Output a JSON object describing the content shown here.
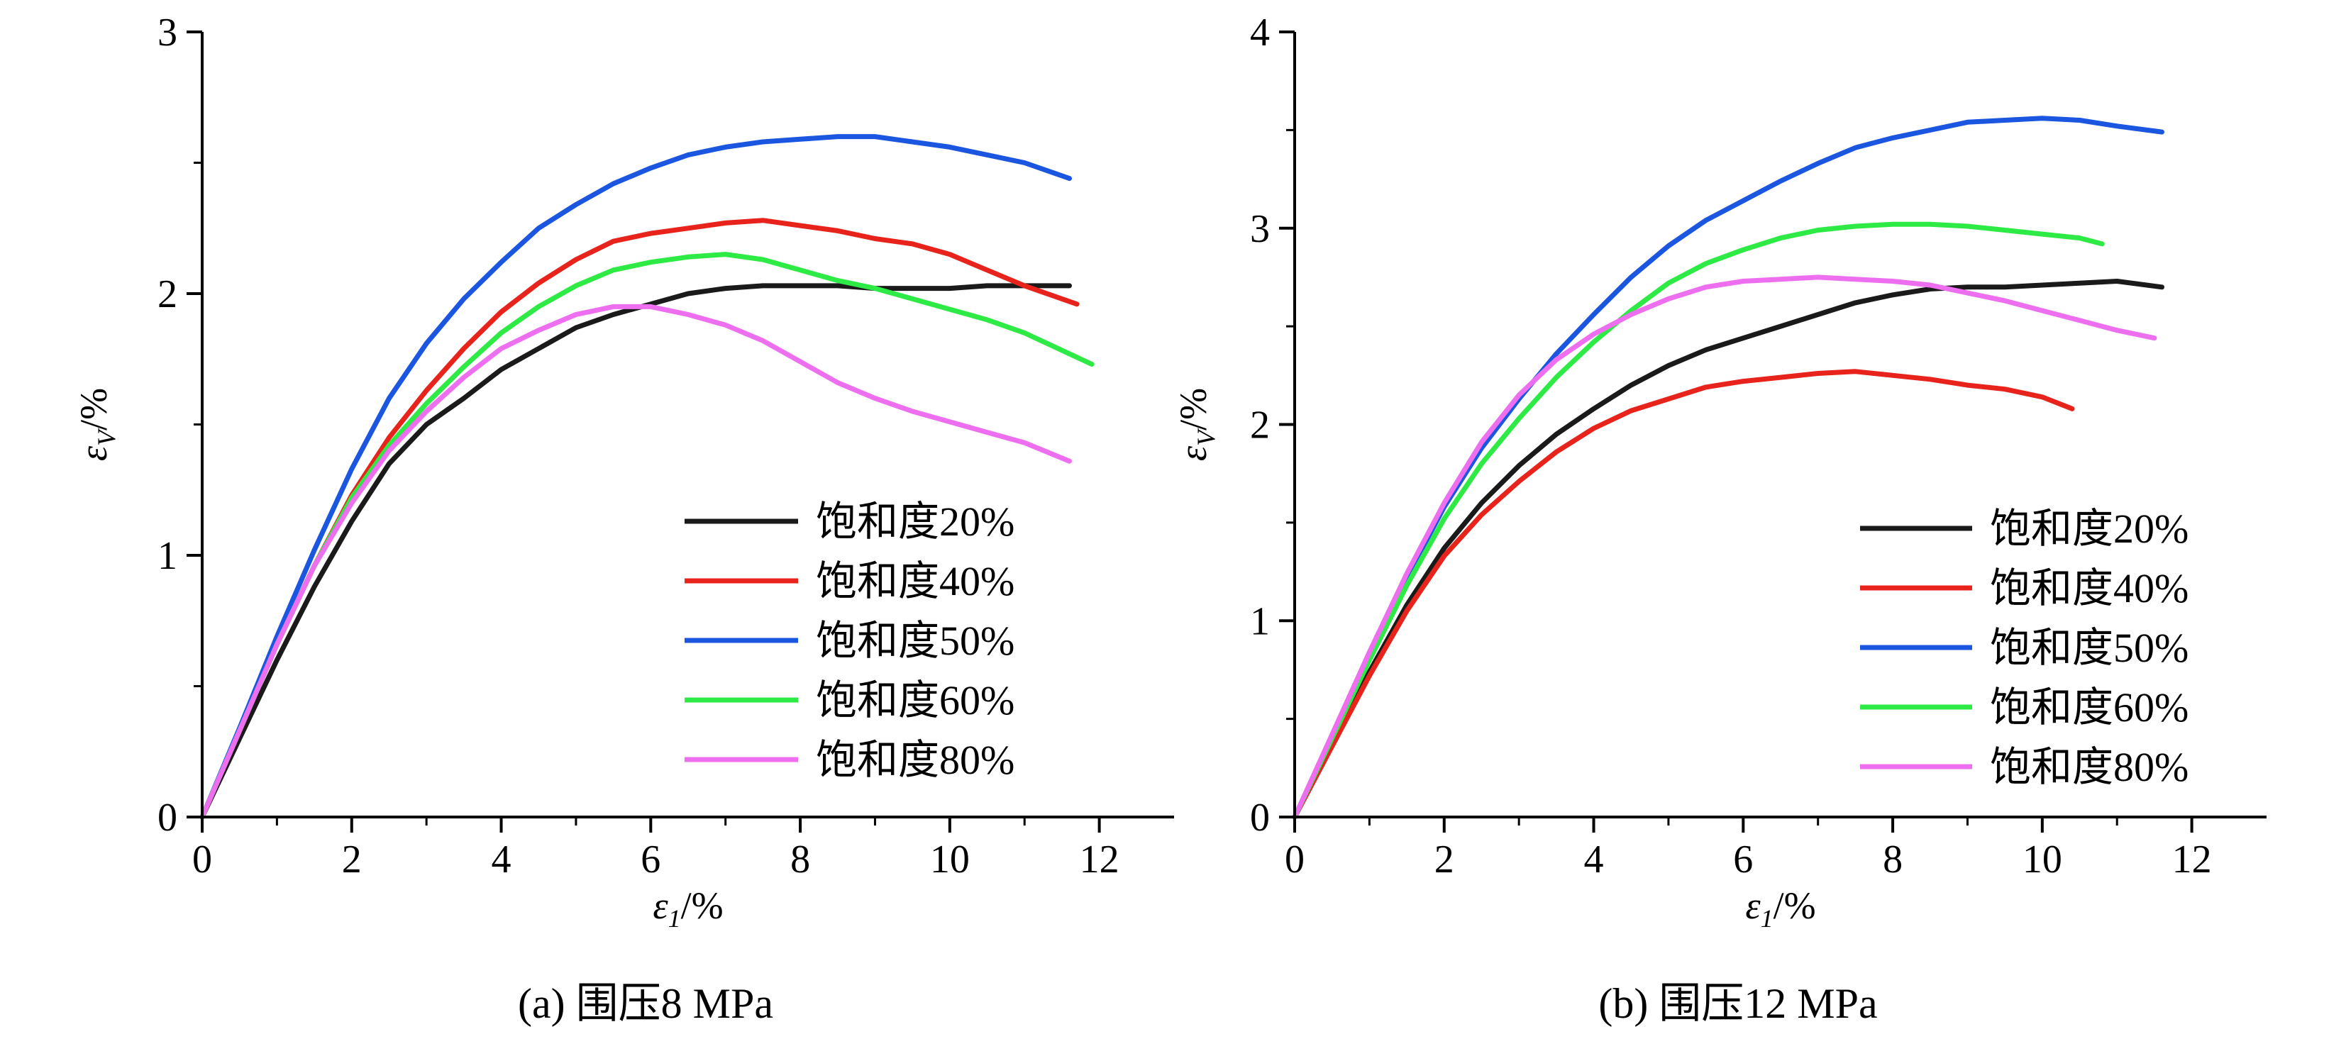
{
  "figure": {
    "background": "#ffffff",
    "colors": {
      "black": "#1a1a1a",
      "red": "#e8231c",
      "blue": "#1b56e0",
      "green": "#2eea45",
      "magenta": "#ee6ef0"
    }
  },
  "chart_data": [
    {
      "type": "line",
      "caption": "(a) 围压8 MPa",
      "xlabel": "ε1/%",
      "xlabel_main": "ε",
      "xlabel_sub": "1",
      "xlabel_unit": "/%",
      "ylabel": "εV/%",
      "ylabel_main": "ε",
      "ylabel_sub": "V",
      "ylabel_unit": "/%",
      "xlim": [
        0,
        13
      ],
      "ylim": [
        0,
        3
      ],
      "xticks": [
        0,
        2,
        4,
        6,
        8,
        10,
        12
      ],
      "yticks": [
        0,
        1,
        2,
        3
      ],
      "xtick_labels": [
        "0",
        "2",
        "4",
        "6",
        "8",
        "10",
        "12"
      ],
      "ytick_labels": [
        "0",
        "1",
        "2",
        "3"
      ],
      "grid": false,
      "legend_position": "bottom-right",
      "series": [
        {
          "name": "饱和度20%",
          "color": "#1a1a1a",
          "x": [
            0,
            0.5,
            1,
            1.5,
            2,
            2.5,
            3,
            3.5,
            4,
            4.5,
            5,
            5.5,
            6,
            6.5,
            7,
            7.5,
            8,
            8.5,
            9,
            9.5,
            10,
            10.5,
            11,
            11.6
          ],
          "y": [
            0,
            0.3,
            0.6,
            0.88,
            1.13,
            1.35,
            1.5,
            1.6,
            1.71,
            1.79,
            1.87,
            1.92,
            1.96,
            2.0,
            2.02,
            2.03,
            2.03,
            2.03,
            2.02,
            2.02,
            2.02,
            2.03,
            2.03,
            2.03
          ]
        },
        {
          "name": "饱和度40%",
          "color": "#e8231c",
          "x": [
            0,
            0.5,
            1,
            1.5,
            2,
            2.5,
            3,
            3.5,
            4,
            4.5,
            5,
            5.5,
            6,
            6.5,
            7,
            7.5,
            8,
            8.5,
            9,
            9.5,
            10,
            10.5,
            11,
            11.7
          ],
          "y": [
            0,
            0.33,
            0.66,
            0.96,
            1.23,
            1.45,
            1.63,
            1.79,
            1.93,
            2.04,
            2.13,
            2.2,
            2.23,
            2.25,
            2.27,
            2.28,
            2.26,
            2.24,
            2.21,
            2.19,
            2.15,
            2.09,
            2.03,
            1.96
          ]
        },
        {
          "name": "饱和度50%",
          "color": "#1b56e0",
          "x": [
            0,
            0.5,
            1,
            1.5,
            2,
            2.5,
            3,
            3.5,
            4,
            4.5,
            5,
            5.5,
            6,
            6.5,
            7,
            7.5,
            8,
            8.5,
            9,
            9.5,
            10,
            10.5,
            11,
            11.6
          ],
          "y": [
            0,
            0.34,
            0.69,
            1.02,
            1.33,
            1.6,
            1.81,
            1.98,
            2.12,
            2.25,
            2.34,
            2.42,
            2.48,
            2.53,
            2.56,
            2.58,
            2.59,
            2.6,
            2.6,
            2.58,
            2.56,
            2.53,
            2.5,
            2.44
          ]
        },
        {
          "name": "饱和度60%",
          "color": "#2eea45",
          "x": [
            0,
            0.5,
            1,
            1.5,
            2,
            2.5,
            3,
            3.5,
            4,
            4.5,
            5,
            5.5,
            6,
            6.5,
            7,
            7.5,
            8,
            8.5,
            9,
            9.5,
            10,
            10.5,
            11,
            11.9
          ],
          "y": [
            0,
            0.33,
            0.66,
            0.96,
            1.22,
            1.42,
            1.58,
            1.72,
            1.85,
            1.95,
            2.03,
            2.09,
            2.12,
            2.14,
            2.15,
            2.13,
            2.09,
            2.05,
            2.02,
            1.98,
            1.94,
            1.9,
            1.85,
            1.73
          ]
        },
        {
          "name": "饱和度80%",
          "color": "#ee6ef0",
          "x": [
            0,
            0.5,
            1,
            1.5,
            2,
            2.5,
            3,
            3.5,
            4,
            4.5,
            5,
            5.5,
            6,
            6.5,
            7,
            7.5,
            8,
            8.5,
            9,
            9.5,
            10,
            10.5,
            11,
            11.6
          ],
          "y": [
            0,
            0.33,
            0.66,
            0.96,
            1.2,
            1.4,
            1.55,
            1.68,
            1.79,
            1.86,
            1.92,
            1.95,
            1.95,
            1.92,
            1.88,
            1.82,
            1.74,
            1.66,
            1.6,
            1.55,
            1.51,
            1.47,
            1.43,
            1.36
          ]
        }
      ]
    },
    {
      "type": "line",
      "caption": "(b) 围压12 MPa",
      "xlabel": "ε1/%",
      "xlabel_main": "ε",
      "xlabel_sub": "1",
      "xlabel_unit": "/%",
      "ylabel": "εV/%",
      "ylabel_main": "ε",
      "ylabel_sub": "V",
      "ylabel_unit": "/%",
      "xlim": [
        0,
        13
      ],
      "ylim": [
        0,
        4
      ],
      "xticks": [
        0,
        2,
        4,
        6,
        8,
        10,
        12
      ],
      "yticks": [
        0,
        1,
        2,
        3,
        4
      ],
      "xtick_labels": [
        "0",
        "2",
        "4",
        "6",
        "8",
        "10",
        "12"
      ],
      "ytick_labels": [
        "0",
        "1",
        "2",
        "3",
        "4"
      ],
      "grid": false,
      "legend_position": "bottom-right",
      "series": [
        {
          "name": "饱和度20%",
          "color": "#1a1a1a",
          "x": [
            0,
            0.5,
            1,
            1.5,
            2,
            2.5,
            3,
            3.5,
            4,
            4.5,
            5,
            5.5,
            6,
            6.5,
            7,
            7.5,
            8,
            8.5,
            9,
            9.5,
            10,
            10.5,
            11,
            11.6
          ],
          "y": [
            0,
            0.37,
            0.74,
            1.08,
            1.37,
            1.6,
            1.79,
            1.95,
            2.08,
            2.2,
            2.3,
            2.38,
            2.44,
            2.5,
            2.56,
            2.62,
            2.66,
            2.69,
            2.7,
            2.7,
            2.71,
            2.72,
            2.73,
            2.7
          ]
        },
        {
          "name": "饱和度40%",
          "color": "#e8231c",
          "x": [
            0,
            0.5,
            1,
            1.5,
            2,
            2.5,
            3,
            3.5,
            4,
            4.5,
            5,
            5.5,
            6,
            6.5,
            7,
            7.5,
            8,
            8.5,
            9,
            9.5,
            10,
            10.4
          ],
          "y": [
            0,
            0.36,
            0.72,
            1.05,
            1.33,
            1.54,
            1.71,
            1.86,
            1.98,
            2.07,
            2.13,
            2.19,
            2.22,
            2.24,
            2.26,
            2.27,
            2.25,
            2.23,
            2.2,
            2.18,
            2.14,
            2.08
          ]
        },
        {
          "name": "饱和度50%",
          "color": "#1b56e0",
          "x": [
            0,
            0.5,
            1,
            1.5,
            2,
            2.5,
            3,
            3.5,
            4,
            4.5,
            5,
            5.5,
            6,
            6.5,
            7,
            7.5,
            8,
            8.5,
            9,
            9.5,
            10,
            10.5,
            11,
            11.6
          ],
          "y": [
            0,
            0.4,
            0.82,
            1.22,
            1.58,
            1.88,
            2.13,
            2.36,
            2.56,
            2.75,
            2.91,
            3.04,
            3.14,
            3.24,
            3.33,
            3.41,
            3.46,
            3.5,
            3.54,
            3.55,
            3.56,
            3.55,
            3.52,
            3.49
          ]
        },
        {
          "name": "饱和度60%",
          "color": "#2eea45",
          "x": [
            0,
            0.5,
            1,
            1.5,
            2,
            2.5,
            3,
            3.5,
            4,
            4.5,
            5,
            5.5,
            6,
            6.5,
            7,
            7.5,
            8,
            8.5,
            9,
            9.5,
            10,
            10.5,
            10.8
          ],
          "y": [
            0,
            0.4,
            0.8,
            1.18,
            1.52,
            1.8,
            2.03,
            2.24,
            2.42,
            2.58,
            2.72,
            2.82,
            2.89,
            2.95,
            2.99,
            3.01,
            3.02,
            3.02,
            3.01,
            2.99,
            2.97,
            2.95,
            2.92
          ]
        },
        {
          "name": "饱和度80%",
          "color": "#ee6ef0",
          "x": [
            0,
            0.5,
            1,
            1.5,
            2,
            2.5,
            3,
            3.5,
            4,
            4.5,
            5,
            5.5,
            6,
            6.5,
            7,
            7.5,
            8,
            8.5,
            9,
            9.5,
            10,
            10.5,
            11,
            11.5
          ],
          "y": [
            0,
            0.42,
            0.84,
            1.24,
            1.6,
            1.91,
            2.15,
            2.33,
            2.46,
            2.56,
            2.64,
            2.7,
            2.73,
            2.74,
            2.75,
            2.74,
            2.73,
            2.71,
            2.67,
            2.63,
            2.58,
            2.53,
            2.48,
            2.44
          ]
        }
      ]
    }
  ]
}
